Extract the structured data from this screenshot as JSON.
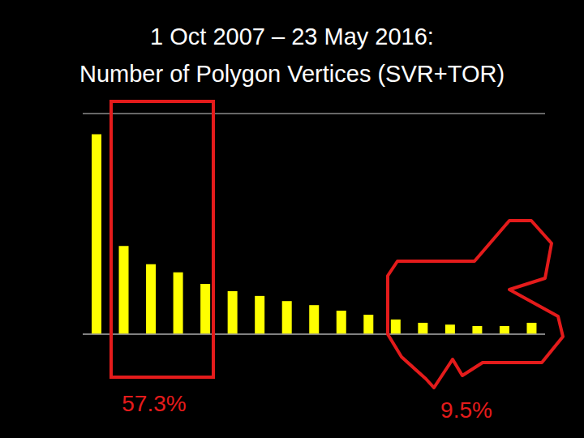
{
  "chart_data": {
    "type": "bar",
    "title": "1 Oct 2007 – 23 May 2016:",
    "subtitle": "Number of Polygon Vertices (SVR+TOR)",
    "categories": [
      null,
      null,
      null,
      null,
      null,
      null,
      null,
      null,
      null,
      null,
      null,
      null,
      null,
      null,
      null,
      null,
      null
    ],
    "values": [
      5.44,
      2.4,
      1.9,
      1.68,
      1.37,
      1.17,
      1.04,
      0.9,
      0.79,
      0.64,
      0.53,
      0.4,
      0.31,
      0.26,
      0.22,
      0.22,
      0.31
    ],
    "color": "#ffff00",
    "ylim": [
      0,
      6
    ],
    "yticks": [
      0,
      1,
      2,
      3,
      4,
      5,
      6
    ],
    "grid": true,
    "tick_labels": false,
    "annotations": [
      {
        "text": "57.3%"
      },
      {
        "text": "9.5%"
      }
    ]
  }
}
